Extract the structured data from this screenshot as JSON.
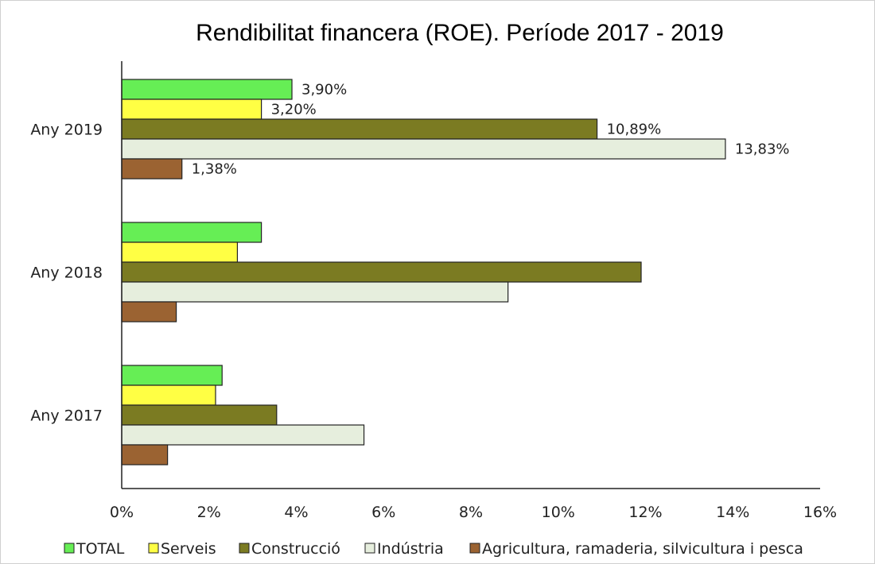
{
  "chart_data": {
    "type": "bar",
    "orientation": "horizontal",
    "title": "Rendibilitat financera (ROE). Període 2017 - 2019",
    "categories": [
      "Any 2019",
      "Any 2018",
      "Any 2017"
    ],
    "series": [
      {
        "name": "TOTAL",
        "color": "#66ee55",
        "values": [
          3.9,
          3.2,
          2.3
        ],
        "labels": [
          "3,90%",
          "",
          ""
        ]
      },
      {
        "name": "Serveis",
        "color": "#ffff44",
        "values": [
          3.2,
          2.65,
          2.15
        ],
        "labels": [
          "3,20%",
          "",
          ""
        ]
      },
      {
        "name": "Construcció",
        "color": "#7b7b22",
        "values": [
          10.89,
          11.9,
          3.55
        ],
        "labels": [
          "10,89%",
          "",
          ""
        ]
      },
      {
        "name": "Indústria",
        "color": "#e6eedd",
        "values": [
          13.83,
          8.85,
          5.55
        ],
        "labels": [
          "13,83%",
          "",
          ""
        ]
      },
      {
        "name": "Agricultura, ramaderia, silvicultura i pesca",
        "color": "#9b6332",
        "values": [
          1.38,
          1.25,
          1.05
        ],
        "labels": [
          "1,38%",
          "",
          ""
        ]
      }
    ],
    "xlim": [
      0,
      16
    ],
    "xticks": [
      "0%",
      "2%",
      "4%",
      "6%",
      "8%",
      "10%",
      "12%",
      "14%",
      "16%"
    ],
    "xlabel": "",
    "ylabel": "",
    "grid": false,
    "legend": "bottom"
  }
}
